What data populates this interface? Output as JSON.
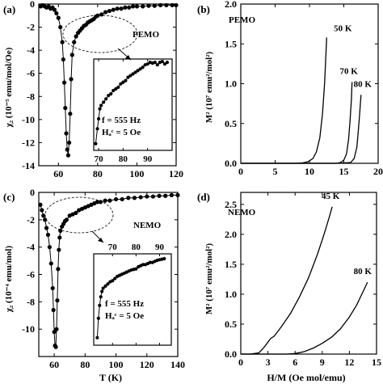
{
  "figure": {
    "panels": [
      {
        "label": "(a)",
        "annotation": "PEMO",
        "ylabel": "χ₂ (10⁻⁵ emu/mol/Oe)",
        "inset": {
          "f_text": "f = 555 Hz",
          "hac_text": "Hₐᶜ = 5 Oe"
        }
      },
      {
        "label": "(b)",
        "annotation": "PEMO",
        "ylabel": "M² (10⁷ emu²/mol²)"
      },
      {
        "label": "(c)",
        "annotation": "NEMO",
        "ylabel": "χ₂ (10⁻⁴ emu/mol)",
        "xlabel": "T (K)",
        "inset": {
          "f_text": "f = 555 Hz",
          "hac_text": "Hₐᶜ = 5 Oe"
        }
      },
      {
        "label": "(d)",
        "annotation": "NEMO",
        "ylabel": "M² (10⁷ emu²/mol²)",
        "xlabel": "H/M (Oe mol/emu)"
      }
    ]
  },
  "chart_data": [
    {
      "id": "a",
      "type": "scatter",
      "title": "",
      "xlabel": "",
      "ylabel": "χ₂ (10⁻⁵ emu/mol/Oe)",
      "xlim": [
        50,
        120
      ],
      "ylim": [
        -14,
        0
      ],
      "xticks": [
        60,
        80,
        100,
        120
      ],
      "yticks": [
        0,
        -2,
        -4,
        -6,
        -8,
        -10,
        -12,
        -14
      ],
      "annotations": [
        "PEMO"
      ],
      "series": [
        {
          "marker": "filled-circle-line",
          "x": [
            51,
            52,
            53,
            54,
            55,
            56,
            57,
            58,
            59,
            60,
            61,
            62,
            62.5,
            63,
            63.5,
            64,
            64.5,
            65,
            65.5,
            66,
            66.5,
            67,
            68,
            69,
            70,
            71,
            72,
            73,
            74,
            75,
            76,
            77,
            78,
            79,
            80,
            82,
            84,
            86,
            88,
            90,
            92,
            94,
            96,
            98,
            100,
            103,
            106,
            109,
            112,
            115,
            118,
            120
          ],
          "y": [
            -0.2,
            -0.1,
            -0.2,
            -0.3,
            -0.2,
            -0.4,
            -0.3,
            -0.5,
            -0.8,
            -1.2,
            -2.0,
            -3.3,
            -4.8,
            -6.8,
            -9.0,
            -11.2,
            -12.6,
            -13.1,
            -12.0,
            -9.5,
            -6.5,
            -4.4,
            -3.3,
            -2.8,
            -2.5,
            -2.3,
            -2.1,
            -1.9,
            -1.8,
            -1.6,
            -1.5,
            -1.4,
            -1.3,
            -1.1,
            -1.0,
            -0.9,
            -0.7,
            -0.6,
            -0.5,
            -0.4,
            -0.4,
            -0.3,
            -0.3,
            -0.2,
            -0.2,
            -0.2,
            -0.15,
            -0.15,
            -0.1,
            -0.1,
            -0.1,
            -0.1
          ]
        }
      ],
      "inset": {
        "xlim": [
          68,
          100
        ],
        "ylim": [
          -5.5,
          0
        ],
        "xticks": [
          70,
          80,
          90
        ],
        "annotations": [
          "f = 555 Hz",
          "Hₐᶜ = 5 Oe"
        ],
        "x": [
          68.8,
          69.5,
          70,
          70.5,
          71,
          72,
          73,
          74,
          75,
          76,
          77,
          78,
          79,
          80,
          81,
          82,
          83,
          84,
          85,
          86,
          87,
          88,
          89,
          90,
          91,
          92,
          93,
          94,
          95,
          96,
          97,
          98
        ],
        "y": [
          -5.1,
          -4.2,
          -3.6,
          -3.0,
          -2.8,
          -2.6,
          -2.4,
          -2.2,
          -2.1,
          -1.9,
          -1.8,
          -1.7,
          -1.5,
          -1.4,
          -1.3,
          -1.1,
          -1.0,
          -0.9,
          -0.8,
          -0.7,
          -0.6,
          -0.5,
          -0.35,
          -0.3,
          -0.2,
          -0.25,
          -0.2,
          -0.35,
          -0.2,
          -0.15,
          -0.3,
          -0.2
        ]
      }
    },
    {
      "id": "b",
      "type": "line",
      "title": "",
      "xlabel": "",
      "ylabel": "M² (10⁷ emu²/mol²)",
      "xlim": [
        0,
        20
      ],
      "ylim": [
        0,
        2.0
      ],
      "xticks": [
        0,
        5,
        10,
        15,
        20
      ],
      "yticks": [
        0.0,
        0.5,
        1.0,
        1.5,
        2.0
      ],
      "annotations": [
        "PEMO"
      ],
      "series": [
        {
          "name": "50 K",
          "x": [
            0,
            6,
            8,
            9,
            9.8,
            10.5,
            11,
            11.5,
            11.9,
            12.2,
            12.5
          ],
          "y": [
            0.0,
            0.0,
            0.0,
            0.005,
            0.02,
            0.06,
            0.14,
            0.32,
            0.62,
            1.0,
            1.58
          ]
        },
        {
          "name": "70 K",
          "x": [
            0,
            12,
            14,
            14.5,
            15,
            15.4,
            15.7,
            15.9,
            16.1,
            16.2
          ],
          "y": [
            0.0,
            0.0,
            0.0,
            0.01,
            0.04,
            0.12,
            0.3,
            0.52,
            0.8,
            1.02
          ]
        },
        {
          "name": "80 K",
          "x": [
            0,
            14,
            16,
            16.5,
            16.9,
            17.1,
            17.3,
            17.5
          ],
          "y": [
            0.0,
            0.0,
            0.01,
            0.06,
            0.2,
            0.4,
            0.62,
            0.86
          ]
        }
      ]
    },
    {
      "id": "c",
      "type": "scatter",
      "title": "",
      "xlabel": "T (K)",
      "ylabel": "χ₂ (10⁻⁴ emu/mol)",
      "xlim": [
        50,
        140
      ],
      "ylim": [
        -12,
        0
      ],
      "xticks": [
        60,
        80,
        100,
        120,
        140
      ],
      "yticks": [
        0,
        -2,
        -4,
        -6,
        -8,
        -10
      ],
      "annotations": [
        "NEMO"
      ],
      "series": [
        {
          "marker": "filled-circle-line",
          "x": [
            51,
            52,
            53,
            54,
            55,
            56,
            57,
            58,
            59,
            59.5,
            60,
            60.5,
            61,
            61.5,
            62,
            62.5,
            63,
            63.5,
            64,
            65,
            66,
            67,
            68,
            70,
            72,
            74,
            76,
            78,
            80,
            82,
            84,
            86,
            88,
            90,
            93,
            96,
            100,
            104,
            108,
            112,
            116,
            120,
            124,
            128,
            132,
            136,
            140
          ],
          "y": [
            -0.9,
            -1.3,
            -1.7,
            -2.0,
            -2.6,
            -3.1,
            -4.0,
            -5.2,
            -7.0,
            -8.6,
            -10.2,
            -11.2,
            -11.3,
            -10.0,
            -7.9,
            -5.6,
            -4.2,
            -3.3,
            -2.8,
            -2.5,
            -2.3,
            -2.1,
            -2.0,
            -1.7,
            -1.6,
            -1.5,
            -1.3,
            -1.2,
            -1.1,
            -1.0,
            -0.9,
            -0.8,
            -0.7,
            -0.7,
            -0.6,
            -0.6,
            -0.5,
            -0.5,
            -0.4,
            -0.4,
            -0.35,
            -0.3,
            -0.3,
            -0.25,
            -0.25,
            -0.2,
            -0.2
          ]
        }
      ],
      "inset": {
        "xlim": [
          62,
          95
        ],
        "ylim": [
          -8.5,
          0
        ],
        "xticks": [
          70,
          80,
          90
        ],
        "annotations": [
          "f = 555 Hz",
          "Hₐᶜ = 5 Oe"
        ],
        "x": [
          63.5,
          64,
          64.5,
          65,
          65.5,
          66,
          67,
          68,
          69,
          70,
          71,
          72,
          73,
          74,
          75,
          76,
          77,
          78,
          79,
          80,
          81,
          82,
          83,
          84,
          85,
          86,
          87,
          88,
          89,
          90,
          91,
          92
        ],
        "y": [
          -7.8,
          -6.0,
          -4.8,
          -4.0,
          -3.5,
          -3.2,
          -3.0,
          -2.8,
          -2.6,
          -2.5,
          -2.3,
          -2.1,
          -2.0,
          -1.9,
          -1.8,
          -1.7,
          -1.6,
          -1.5,
          -1.45,
          -1.4,
          -1.2,
          -1.1,
          -1.0,
          -1.0,
          -0.9,
          -0.8,
          -0.8,
          -0.7,
          -0.6,
          -0.55,
          -0.5,
          -0.45
        ]
      }
    },
    {
      "id": "d",
      "type": "line",
      "title": "",
      "xlabel": "H/M (Oe mol/emu)",
      "ylabel": "M² (10⁷ emu²/mol²)",
      "xlim": [
        0,
        15
      ],
      "ylim": [
        0,
        2.7
      ],
      "xticks": [
        0,
        3,
        6,
        9,
        12,
        15
      ],
      "yticks": [
        0.0,
        0.5,
        1.0,
        1.5,
        2.0,
        2.5
      ],
      "annotations": [
        "NEMO"
      ],
      "series": [
        {
          "name": "45 K",
          "x": [
            0,
            1,
            2,
            2.5,
            3,
            3.3,
            3.7,
            4.5,
            5.5,
            6.5,
            7.5,
            8.5,
            9.2,
            9.8,
            10.1
          ],
          "y": [
            0.0,
            0.0,
            0.02,
            0.1,
            0.2,
            0.26,
            0.3,
            0.46,
            0.68,
            0.96,
            1.28,
            1.68,
            2.0,
            2.3,
            2.46
          ]
        },
        {
          "name": "80 K",
          "x": [
            0,
            5,
            6,
            7,
            8,
            9,
            10,
            11,
            12,
            12.8,
            13.5,
            14.0
          ],
          "y": [
            0.0,
            0.0,
            0.01,
            0.04,
            0.1,
            0.18,
            0.28,
            0.42,
            0.62,
            0.82,
            1.04,
            1.2
          ]
        }
      ]
    }
  ]
}
